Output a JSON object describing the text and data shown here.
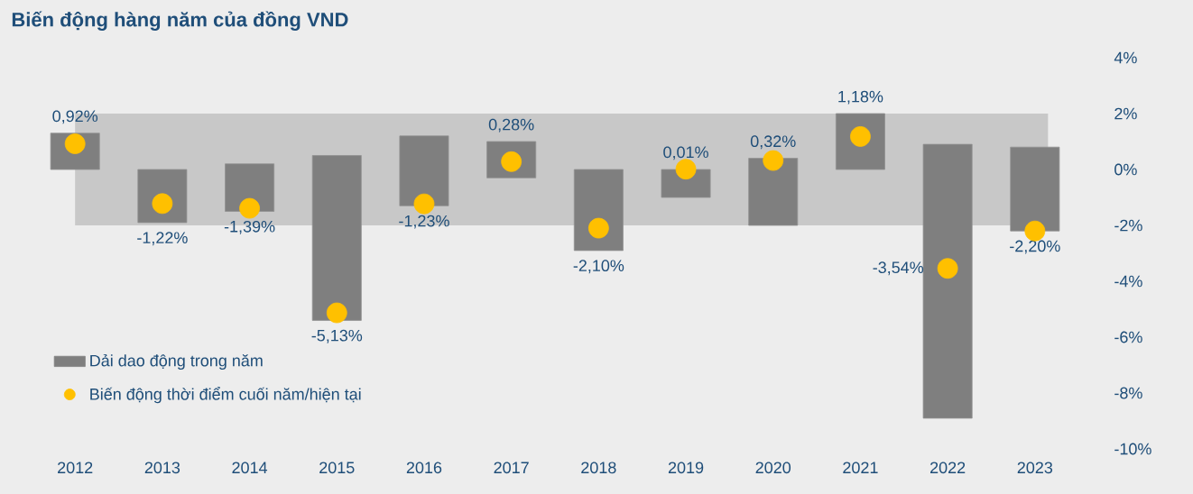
{
  "chart_data": {
    "type": "bar",
    "title": "Biến động hàng năm của đồng VND",
    "categories": [
      "2012",
      "2013",
      "2014",
      "2015",
      "2016",
      "2017",
      "2018",
      "2019",
      "2020",
      "2021",
      "2022",
      "2023"
    ],
    "series": [
      {
        "name": "Dải dao động trong năm",
        "color": "#7f7f7f",
        "base": [
          0,
          -1.9,
          -1.5,
          -5.4,
          -1.3,
          -0.3,
          -2.9,
          -1.0,
          -2.0,
          0,
          -8.9,
          -2.2
        ],
        "values": [
          1.3,
          1.9,
          1.7,
          5.9,
          2.5,
          1.3,
          2.9,
          1.0,
          2.4,
          2.0,
          9.8,
          3.0
        ]
      },
      {
        "name": "Biến động thời điểm cuối năm/hiện tại",
        "type": "scatter",
        "marker": "circle",
        "color": "#ffc000",
        "values": [
          0.92,
          -1.22,
          -1.39,
          -5.13,
          -1.23,
          0.28,
          -2.1,
          0.01,
          0.32,
          1.18,
          -3.54,
          -2.2
        ],
        "value_labels": [
          "0,92%",
          "-1,22%",
          "-1,39%",
          "-5,13%",
          "-1,23%",
          "0,28%",
          "-2,10%",
          "0,01%",
          "0,32%",
          "1,18%",
          "-3,54%",
          "-2,20%"
        ]
      }
    ],
    "bands": [
      {
        "axis": "y",
        "from": -2,
        "to": 2,
        "color": "#c8c8c8"
      }
    ],
    "ylim": [
      -10,
      4
    ],
    "yticks": [
      {
        "value": 4,
        "label": "4%"
      },
      {
        "value": 2,
        "label": "2%"
      },
      {
        "value": 0,
        "label": "0%"
      },
      {
        "value": -2,
        "label": "-2%"
      },
      {
        "value": -4,
        "label": "-4%"
      },
      {
        "value": -6,
        "label": "-6%"
      },
      {
        "value": -8,
        "label": "-8%"
      },
      {
        "value": -10,
        "label": "-10%"
      }
    ],
    "legend": "bottom left"
  }
}
